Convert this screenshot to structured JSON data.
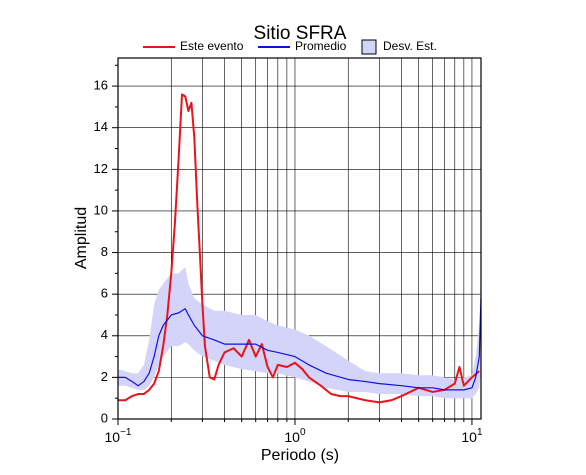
{
  "chart_data": {
    "type": "line",
    "title": "Sitio SFRA",
    "x_label": "Periodo (s)",
    "y_label": "Amplitud",
    "xscale": "log",
    "xlim": [
      0.1,
      11.25
    ],
    "ylim": [
      0,
      17.35
    ],
    "xticks": [
      {
        "value": 0.1,
        "label": "10",
        "exponent": "−1"
      },
      {
        "value": 1,
        "label": "10",
        "exponent": "0"
      },
      {
        "value": 10,
        "label": "10",
        "exponent": "1"
      }
    ],
    "xminor": [
      0.2,
      0.3,
      0.4,
      0.5,
      0.6,
      0.7,
      0.8,
      0.9,
      2,
      3,
      4,
      5,
      6,
      7,
      8,
      9
    ],
    "yticks": [
      0,
      2,
      4,
      6,
      8,
      10,
      12,
      14,
      16
    ],
    "yminor": [
      1,
      3,
      5,
      7,
      9,
      11,
      13,
      15,
      17
    ],
    "grid": true,
    "legend": "top",
    "series": [
      {
        "name": "Este evento",
        "color": "#e8141c",
        "x": [
          0.1,
          0.11,
          0.12,
          0.13,
          0.14,
          0.15,
          0.16,
          0.17,
          0.18,
          0.19,
          0.2,
          0.21,
          0.22,
          0.23,
          0.24,
          0.25,
          0.26,
          0.27,
          0.28,
          0.29,
          0.3,
          0.31,
          0.33,
          0.35,
          0.37,
          0.4,
          0.45,
          0.5,
          0.55,
          0.6,
          0.65,
          0.7,
          0.75,
          0.8,
          0.9,
          1.0,
          1.1,
          1.2,
          1.4,
          1.6,
          1.8,
          2.0,
          2.5,
          3.0,
          3.5,
          4.0,
          5.0,
          6.0,
          7.0,
          8.0,
          8.5,
          9.0,
          10,
          11
        ],
        "values": [
          0.9,
          0.9,
          1.1,
          1.2,
          1.2,
          1.4,
          1.7,
          2.3,
          3.5,
          5.0,
          7.0,
          9.5,
          12.5,
          15.6,
          15.5,
          14.8,
          15.2,
          13.5,
          10.5,
          8.0,
          5.5,
          3.5,
          2.0,
          1.9,
          2.6,
          3.2,
          3.4,
          3.0,
          3.8,
          3.0,
          3.6,
          2.5,
          2.0,
          2.6,
          2.5,
          2.7,
          2.4,
          2.0,
          1.6,
          1.2,
          1.1,
          1.1,
          0.9,
          0.8,
          0.9,
          1.1,
          1.5,
          1.3,
          1.4,
          1.7,
          2.5,
          1.6,
          2.0,
          2.3
        ]
      },
      {
        "name": "Promedio",
        "color": "#1010e0",
        "x": [
          0.1,
          0.11,
          0.12,
          0.13,
          0.14,
          0.15,
          0.16,
          0.17,
          0.18,
          0.2,
          0.22,
          0.24,
          0.25,
          0.27,
          0.3,
          0.35,
          0.4,
          0.5,
          0.6,
          0.7,
          0.8,
          1.0,
          1.2,
          1.5,
          2.0,
          2.5,
          3.0,
          4.0,
          5.0,
          6.0,
          7,
          8,
          9,
          10,
          10.5,
          11,
          11.25
        ],
        "values": [
          2.0,
          2.0,
          1.8,
          1.6,
          1.8,
          2.2,
          3.0,
          4.0,
          4.5,
          5.0,
          5.1,
          5.3,
          5.0,
          4.5,
          4.0,
          3.8,
          3.6,
          3.6,
          3.6,
          3.3,
          3.2,
          3.0,
          2.6,
          2.2,
          1.9,
          1.8,
          1.7,
          1.6,
          1.5,
          1.5,
          1.4,
          1.4,
          1.4,
          1.5,
          2.0,
          3.0,
          5.8
        ]
      },
      {
        "name": "Desv. Est.",
        "color": "#d4d4fa",
        "x": [
          0.1,
          0.11,
          0.12,
          0.13,
          0.14,
          0.15,
          0.16,
          0.17,
          0.18,
          0.2,
          0.22,
          0.24,
          0.25,
          0.27,
          0.3,
          0.35,
          0.4,
          0.5,
          0.6,
          0.7,
          0.8,
          1.0,
          1.2,
          1.5,
          2.0,
          2.5,
          3.0,
          4.0,
          5.0,
          6.0,
          7,
          8,
          9,
          10,
          10.5,
          11,
          11.25
        ],
        "lower": [
          1.6,
          1.6,
          1.5,
          1.4,
          1.4,
          1.6,
          2.0,
          2.6,
          3.0,
          3.5,
          3.5,
          3.7,
          3.6,
          3.3,
          3.0,
          2.8,
          2.6,
          2.4,
          2.3,
          2.2,
          2.2,
          2.0,
          1.8,
          1.5,
          1.3,
          1.3,
          1.2,
          1.2,
          1.1,
          1.1,
          1.0,
          1.0,
          1.0,
          1.0,
          1.2,
          1.5,
          2.5
        ],
        "upper": [
          2.4,
          2.3,
          2.2,
          2.2,
          2.6,
          3.8,
          5.5,
          6.2,
          6.5,
          7.0,
          7.0,
          7.3,
          6.5,
          5.8,
          5.5,
          5.2,
          5.2,
          5.0,
          5.0,
          4.7,
          4.5,
          4.3,
          4.0,
          3.5,
          2.8,
          2.3,
          2.2,
          2.2,
          2.1,
          2.1,
          2.0,
          1.9,
          2.0,
          2.1,
          3.0,
          4.5,
          7.5
        ]
      }
    ]
  }
}
